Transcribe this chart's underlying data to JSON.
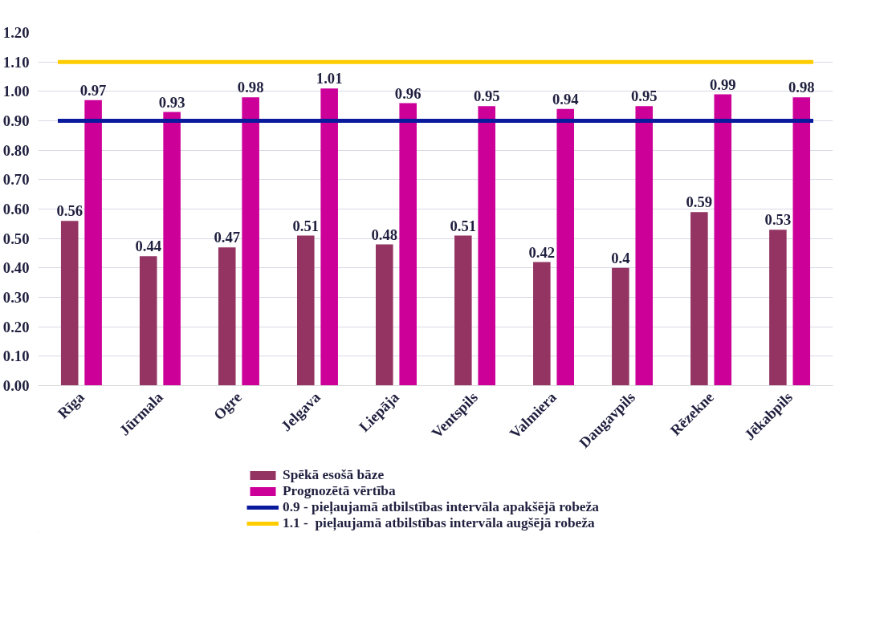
{
  "chart_data": {
    "type": "bar",
    "categories": [
      "Rīga",
      "Jūrmala",
      "Ogre",
      "Jelgava",
      "Liepāja",
      "Ventspils",
      "Valmiera",
      "Daugavpils",
      "Rēzekne",
      "Jēkabpils"
    ],
    "series": [
      {
        "name": "Spēkā esošā bāze",
        "color": "#943462",
        "values": [
          0.56,
          0.44,
          0.47,
          0.51,
          0.48,
          0.51,
          0.42,
          0.4,
          0.59,
          0.53
        ]
      },
      {
        "name": "Prognozētā vērtība",
        "color": "#cc0099",
        "values": [
          0.97,
          0.93,
          0.98,
          1.01,
          0.96,
          0.95,
          0.94,
          0.95,
          0.99,
          0.98
        ]
      }
    ],
    "ref_lines": [
      {
        "axis": "y",
        "value": 0.9,
        "label": "0.9 - pieļaujamā atbilstības intervāla apakšējā robeža",
        "color": "#0a1a9c"
      },
      {
        "axis": "y",
        "value": 1.1,
        "label": "1.1 -  pieļaujamā atbilstības intervāla augšējā robeža",
        "color": "#ffcc00"
      }
    ],
    "ylim": [
      0,
      1.2
    ],
    "yticks": [
      {
        "value": 0,
        "label": "0.00"
      },
      {
        "value": 0.1,
        "label": "0.10"
      },
      {
        "value": 0.2,
        "label": "0.20"
      },
      {
        "value": 0.3,
        "label": "0.30"
      },
      {
        "value": 0.4,
        "label": "0.40"
      },
      {
        "value": 0.5,
        "label": "0.50"
      },
      {
        "value": 0.6,
        "label": "0.60"
      },
      {
        "value": 0.7,
        "label": "0.70"
      },
      {
        "value": 0.8,
        "label": "0.80"
      },
      {
        "value": 0.9,
        "label": "0.90"
      },
      {
        "value": 1.0,
        "label": "1.00"
      },
      {
        "value": 1.1,
        "label": "1.10"
      },
      {
        "value": 1.2,
        "label": "1.20"
      }
    ],
    "grid": "y",
    "data_labels": true,
    "legend": "bottom"
  }
}
